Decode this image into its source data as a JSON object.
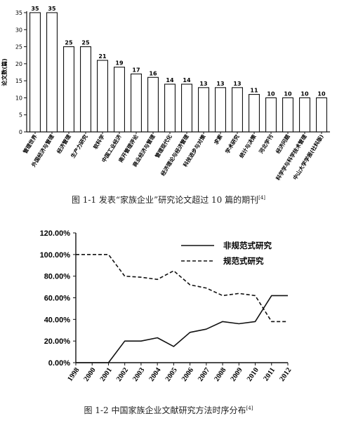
{
  "chart_data": [
    {
      "type": "bar",
      "ylabel": "论文数(篇)",
      "ylim": [
        0,
        35
      ],
      "yticks": [
        0,
        5,
        10,
        15,
        20,
        25,
        30,
        35
      ],
      "categories": [
        "管理世界",
        "外国经济与管理",
        "经济管理",
        "生产力研究",
        "软科学",
        "中国工业经济",
        "南开管理评论",
        "商业经济与管理",
        "管理现代化",
        "经济理论与经济管理",
        "科技进步与对策",
        "求索",
        "学术研究",
        "统计与决策",
        "河北学刊",
        "经济问题",
        "科学学与科学技术管理",
        "中山大学学报(社科版)"
      ],
      "values": [
        35,
        35,
        25,
        25,
        21,
        19,
        17,
        16,
        14,
        14,
        13,
        13,
        13,
        11,
        10,
        10,
        10,
        10
      ],
      "caption": "图 1-1 发表“家族企业”研究论文超过 10 篇的期刊",
      "caption_ref": "[4]"
    },
    {
      "type": "line",
      "x": [
        "1998",
        "2000",
        "2001",
        "2002",
        "2003",
        "2004",
        "2005",
        "2006",
        "2007",
        "2008",
        "2009",
        "2010",
        "2011",
        "2012"
      ],
      "ylim": [
        0,
        1.2
      ],
      "yticks": [
        "0.00%",
        "20.00%",
        "40.00%",
        "60.00%",
        "80.00%",
        "100.00%",
        "120.00%"
      ],
      "series": [
        {
          "name": "非规范式研究",
          "style": "solid",
          "values": [
            0,
            0,
            0,
            0.2,
            0.2,
            0.23,
            0.15,
            0.28,
            0.31,
            0.38,
            0.36,
            0.38,
            0.62,
            0.62
          ]
        },
        {
          "name": "规范式研究",
          "style": "dashed",
          "values": [
            1.0,
            1.0,
            1.0,
            0.8,
            0.79,
            0.77,
            0.85,
            0.72,
            0.69,
            0.62,
            0.64,
            0.62,
            0.38,
            0.38
          ]
        }
      ],
      "caption": "图 1-2   中国家族企业文献研究方法时序分布",
      "caption_ref": "[4]"
    }
  ]
}
